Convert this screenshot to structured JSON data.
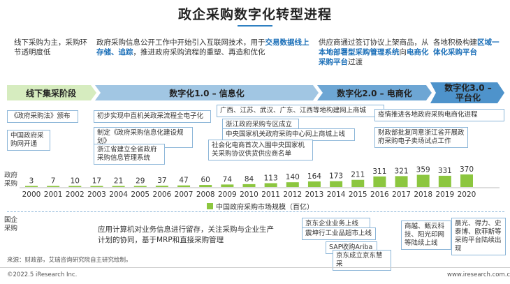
{
  "title": "政企采购数字化转型进程",
  "phases": [
    {
      "desc_parts": [
        {
          "t": "线下采购为主，采购环节透明度低",
          "h": false
        }
      ],
      "band": "线下集采阶段"
    },
    {
      "desc_parts": [
        {
          "t": "政府采购信息公开工作中开始引入互联网技术，用于",
          "h": false
        },
        {
          "t": "交易数据线上存储、追踪",
          "h": true
        },
        {
          "t": "，推进政府采购流程的重塑、再造和优化",
          "h": false
        }
      ],
      "band": "数字化1.0 – 信息化"
    },
    {
      "desc_parts": [
        {
          "t": "供应商通过签订协议上架商品，从",
          "h": false
        },
        {
          "t": "本地部署型采购管理系统",
          "h": true
        },
        {
          "t": "向",
          "h": false
        },
        {
          "t": "电商化采购平台",
          "h": true
        },
        {
          "t": "过渡",
          "h": false
        }
      ],
      "band": "数字化2.0 – 电商化"
    },
    {
      "desc_parts": [
        {
          "t": "各地积极构建",
          "h": false
        },
        {
          "t": "区域一体化采购平台",
          "h": true
        }
      ],
      "band_line1": "数字化3.0 –",
      "band_line2": "平台化"
    }
  ],
  "gov_label": "政府\n采购",
  "enterprise_label": "国企\n采购",
  "gov_events": [
    "《政府采购法》颁布",
    "中国政府采购网开通",
    "初步实现中直机关政采流程全电子化",
    "制定《政府采购信息化建设规划》",
    "浙江省建立全省政府采购信息管理系统",
    "广西、江苏、武汉、广东、江西等地构建网上商城",
    "浙江政府采购专区成立",
    "中央国家机关政府采购中心网上商城上线",
    "社会化电商首次入围中央国家机关采购协议供货供应商名单",
    "疫情推进各地政府采购电商化进程",
    "财政部批复同意浙江省开展政府采购电子卖场试点工作"
  ],
  "enterprise_events": [
    "应用计算机对业务信息进行留存，关注采购与企业生产计划的协同，基于MRP和直接采购管理",
    "京东企业业务上线",
    "震坤行工业品超市上线",
    "SAP收购Ariba",
    "京东成立京东慧采",
    "商越、甄云科技、阳光印网等陆续上线",
    "晨光、得力、史泰博、欧菲斯等采购平台陆续出现"
  ],
  "chart_data": {
    "type": "bar",
    "categories": [
      "2000",
      "2001",
      "2002",
      "2003",
      "2004",
      "2005",
      "2006",
      "2007",
      "2008",
      "2009",
      "2010",
      "2011",
      "2012",
      "2013",
      "2014",
      "2015",
      "2016",
      "2017",
      "2018",
      "2019",
      "2020"
    ],
    "series": [
      {
        "name": "中国政府采购市场规模（百亿）",
        "values": [
          3,
          7,
          10,
          17,
          21,
          29,
          37,
          47,
          60,
          74,
          84,
          113,
          140,
          164,
          173,
          211,
          311,
          321,
          359,
          331,
          370
        ]
      }
    ],
    "ylim": [
      0,
      370
    ],
    "colors": {
      "bar": "#8cc63f",
      "band_offline": "#d6ecbf",
      "band_digital": "#2f80c2",
      "accent": "#1b6fb8"
    }
  },
  "source": "来源：财政部，艾瑞咨询研究院自主研究绘制。",
  "copyright": "©2022.5 iResearch Inc.",
  "website": "www.iresearch.com.cn"
}
